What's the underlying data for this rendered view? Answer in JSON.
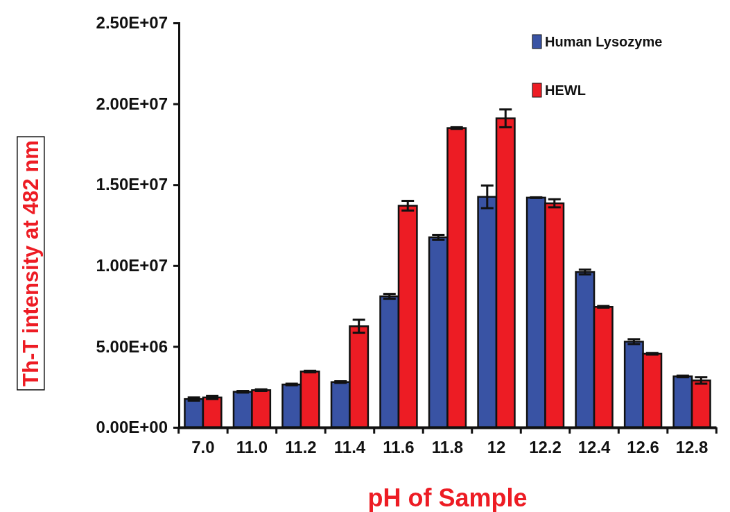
{
  "chart_data": {
    "type": "bar",
    "xlabel": "pH of Sample",
    "ylabel": "Th-T intensity at 482 nm",
    "categories": [
      "7.0",
      "11.0",
      "11.2",
      "11.4",
      "11.6",
      "11.8",
      "12",
      "12.2",
      "12.4",
      "12.6",
      "12.8"
    ],
    "series": [
      {
        "name": "Human Lysozyme",
        "color": "#3953a4",
        "values": [
          1750000,
          2200000,
          2650000,
          2800000,
          8100000,
          11750000,
          14250000,
          14200000,
          9600000,
          5300000,
          3150000
        ],
        "errors": [
          100000,
          50000,
          50000,
          50000,
          150000,
          150000,
          700000,
          20000,
          150000,
          150000,
          50000
        ]
      },
      {
        "name": "HEWL",
        "color": "#ed1c24",
        "values": [
          1850000,
          2300000,
          3450000,
          6250000,
          13700000,
          18500000,
          19100000,
          13850000,
          7450000,
          4550000,
          2900000
        ],
        "errors": [
          100000,
          50000,
          50000,
          400000,
          300000,
          50000,
          550000,
          250000,
          50000,
          50000,
          200000
        ]
      }
    ],
    "ylim": [
      0,
      25000000
    ],
    "yticks": [
      {
        "value": 0,
        "label": "0.00E+00"
      },
      {
        "value": 5000000,
        "label": "5.00E+06"
      },
      {
        "value": 10000000,
        "label": "1.00E+07"
      },
      {
        "value": 15000000,
        "label": "1.50E+07"
      },
      {
        "value": 20000000,
        "label": "2.00E+07"
      },
      {
        "value": 25000000,
        "label": "2.50E+07"
      }
    ],
    "grid": false,
    "legend": "top right"
  }
}
